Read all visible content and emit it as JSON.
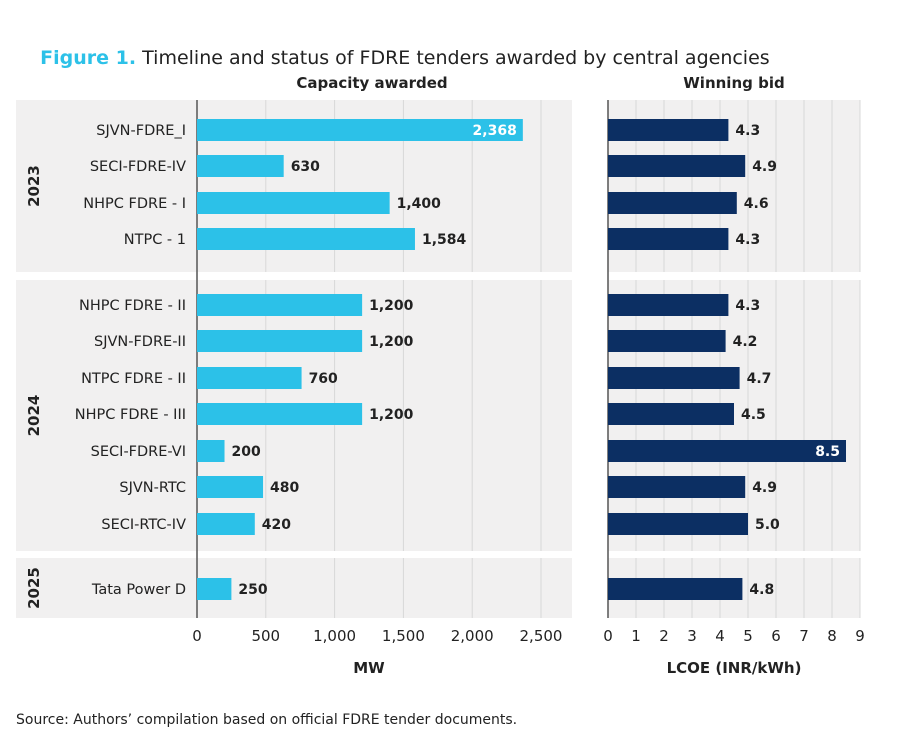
{
  "title": {
    "figure_label": "Figure 1.",
    "text": " Timeline and status of FDRE tenders awarded by central agencies"
  },
  "source": "Source: Authors’ compilation based on official FDRE tender documents.",
  "colors": {
    "capacity": "#2cc1e8",
    "bid": "#0c2f63",
    "title_accent": "#2cc1e8",
    "panel_bg": "#f1f0f0"
  },
  "chart_data": [
    {
      "type": "bar",
      "orientation": "horizontal",
      "title": "Capacity awarded",
      "xlabel": "MW",
      "xlim": [
        0,
        2500
      ],
      "xticks": [
        "0",
        "500",
        "1,000",
        "1,500",
        "2,000",
        "2,500"
      ],
      "xtick_values": [
        0,
        500,
        1000,
        1500,
        2000,
        2500
      ],
      "grid": true,
      "groups": [
        {
          "label": "2023",
          "categories": [
            "SJVN-FDRE_I",
            "SECI-FDRE-IV",
            "NHPC FDRE - I",
            "NTPC - 1"
          ],
          "values": [
            2368,
            630,
            1400,
            1584
          ],
          "labels": [
            "2,368",
            "630",
            "1,400",
            "1,584"
          ]
        },
        {
          "label": "2024",
          "categories": [
            "NHPC FDRE - II",
            "SJVN-FDRE-II",
            "NTPC FDRE - II",
            "NHPC FDRE - III",
            "SECI-FDRE-VI",
            "SJVN-RTC",
            "SECI-RTC-IV"
          ],
          "values": [
            1200,
            1200,
            760,
            1200,
            200,
            480,
            420
          ],
          "labels": [
            "1,200",
            "1,200",
            "760",
            "1,200",
            "200",
            "480",
            "420"
          ]
        },
        {
          "label": "2025",
          "categories": [
            "Tata Power D"
          ],
          "values": [
            250
          ],
          "labels": [
            "250"
          ]
        }
      ]
    },
    {
      "type": "bar",
      "orientation": "horizontal",
      "title": "Winning bid",
      "xlabel": "LCOE (INR/kWh)",
      "xlim": [
        0,
        9
      ],
      "xticks": [
        "0",
        "1",
        "2",
        "3",
        "4",
        "5",
        "6",
        "7",
        "8",
        "9"
      ],
      "xtick_values": [
        0,
        1,
        2,
        3,
        4,
        5,
        6,
        7,
        8,
        9
      ],
      "grid": true,
      "groups": [
        {
          "label": "2023",
          "values": [
            4.3,
            4.9,
            4.6,
            4.3
          ],
          "labels": [
            "4.3",
            "4.9",
            "4.6",
            "4.3"
          ]
        },
        {
          "label": "2024",
          "values": [
            4.3,
            4.2,
            4.7,
            4.5,
            8.5,
            4.9,
            5.0
          ],
          "labels": [
            "4.3",
            "4.2",
            "4.7",
            "4.5",
            "8.5",
            "4.9",
            "5.0"
          ]
        },
        {
          "label": "2025",
          "values": [
            4.8
          ],
          "labels": [
            "4.8"
          ]
        }
      ]
    }
  ]
}
